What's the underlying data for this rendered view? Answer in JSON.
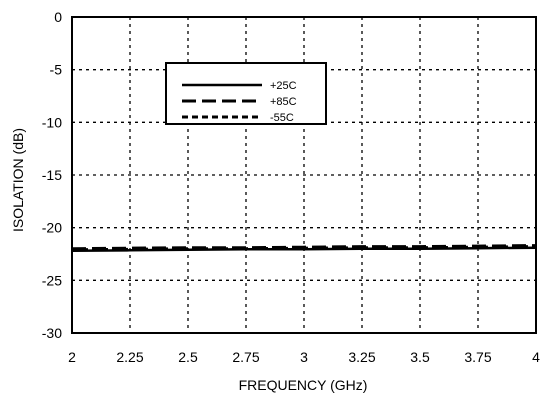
{
  "chart_data": {
    "type": "line",
    "title": "",
    "xlabel": "FREQUENCY (GHz)",
    "ylabel": "ISOLATION (dB)",
    "xlim": [
      2,
      4
    ],
    "ylim": [
      -30,
      0
    ],
    "x_ticks": [
      2,
      2.25,
      2.5,
      2.75,
      3,
      3.25,
      3.5,
      3.75,
      4
    ],
    "x_tick_labels": [
      "2",
      "2.25",
      "2.5",
      "2.75",
      "3",
      "3.25",
      "3.5",
      "3.75",
      "4"
    ],
    "y_ticks": [
      0,
      -5,
      -10,
      -15,
      -20,
      -25,
      -30
    ],
    "y_tick_labels": [
      "0",
      "-5",
      "-10",
      "-15",
      "-20",
      "-25",
      "-30"
    ],
    "grid": true,
    "grid_style": "dotted",
    "legend_position": "top-center",
    "series": [
      {
        "name": "+25C",
        "line_style": "solid",
        "x": [
          2,
          2.25,
          2.5,
          2.75,
          3,
          3.25,
          3.5,
          3.75,
          4
        ],
        "y": [
          -22.2,
          -22.15,
          -22.1,
          -22.05,
          -22.05,
          -22.0,
          -22.0,
          -21.95,
          -21.9
        ]
      },
      {
        "name": "+85C",
        "line_style": "long-dash",
        "x": [
          2,
          2.25,
          2.5,
          2.75,
          3,
          3.25,
          3.5,
          3.75,
          4
        ],
        "y": [
          -22.0,
          -21.95,
          -21.9,
          -21.9,
          -21.85,
          -21.8,
          -21.8,
          -21.75,
          -21.7
        ]
      },
      {
        "name": "-55C",
        "line_style": "short-dash",
        "x": [
          2,
          2.25,
          2.5,
          2.75,
          3,
          3.25,
          3.5,
          3.75,
          4
        ],
        "y": [
          -22.1,
          -22.05,
          -22.0,
          -22.0,
          -21.95,
          -21.9,
          -21.9,
          -21.85,
          -21.8
        ]
      }
    ]
  }
}
